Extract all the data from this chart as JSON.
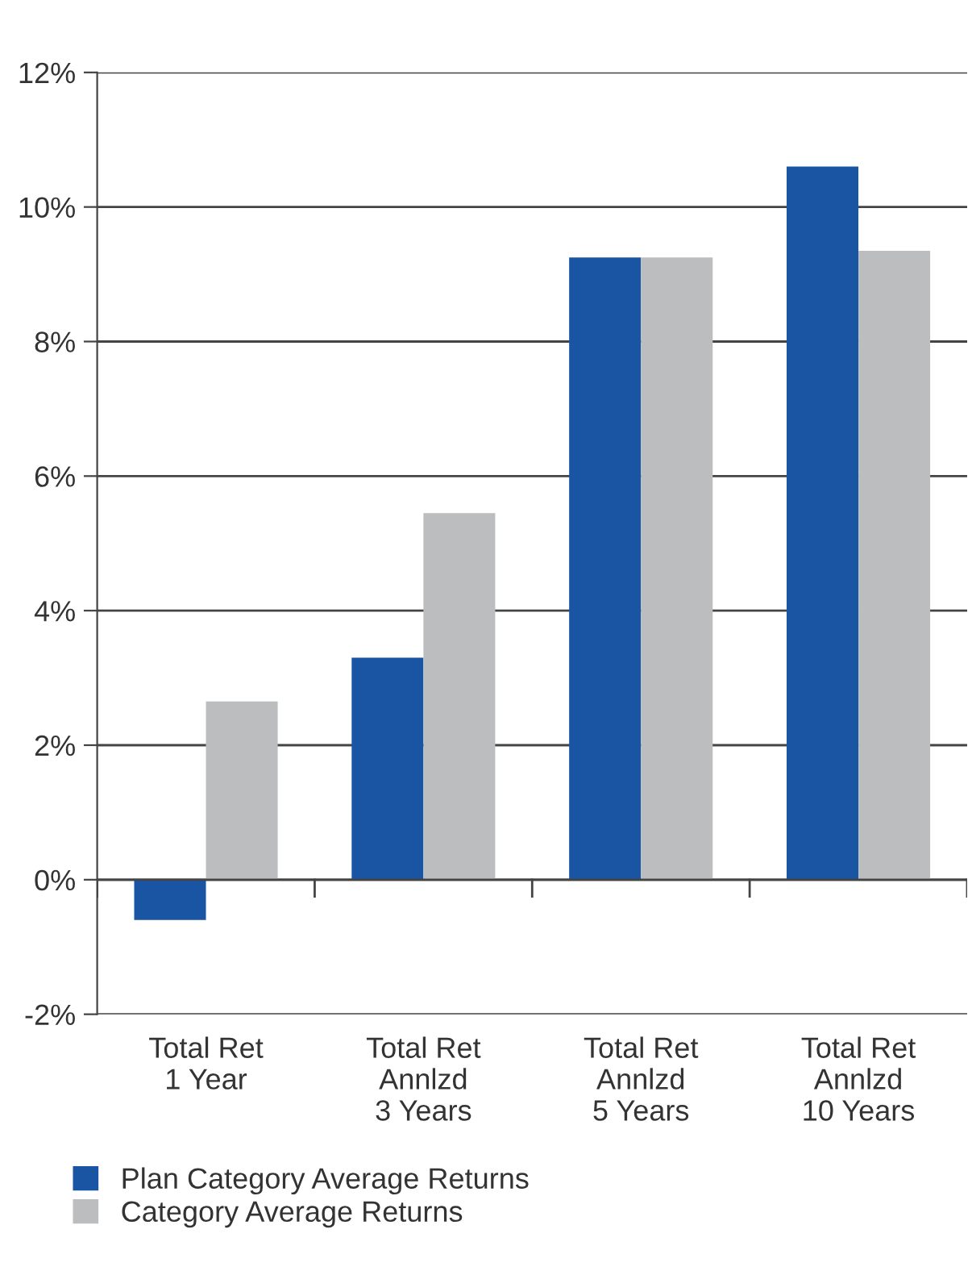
{
  "chart_data": {
    "type": "bar",
    "categories": [
      "Total Ret\n1 Year",
      "Total Ret\nAnnlzd\n3 Years",
      "Total Ret\nAnnlzd\n5 Years",
      "Total Ret\nAnnlzd\n10 Years"
    ],
    "series": [
      {
        "name": "Plan Category Average Returns",
        "color": "#1a55a4",
        "values": [
          -0.6,
          3.3,
          9.25,
          10.6
        ]
      },
      {
        "name": "Category Average Returns",
        "color": "#bcbdbf",
        "values": [
          2.65,
          5.45,
          9.25,
          9.35
        ]
      }
    ],
    "ylim": [
      -2,
      12
    ],
    "yticks": [
      {
        "value": -2,
        "label": "-2%"
      },
      {
        "value": 0,
        "label": "0%"
      },
      {
        "value": 2,
        "label": "2%"
      },
      {
        "value": 4,
        "label": "4%"
      },
      {
        "value": 6,
        "label": "6%"
      },
      {
        "value": 8,
        "label": "8%"
      },
      {
        "value": 10,
        "label": "10%"
      },
      {
        "value": 12,
        "label": "12%"
      }
    ],
    "grid": "y",
    "legend": "bottom left"
  }
}
